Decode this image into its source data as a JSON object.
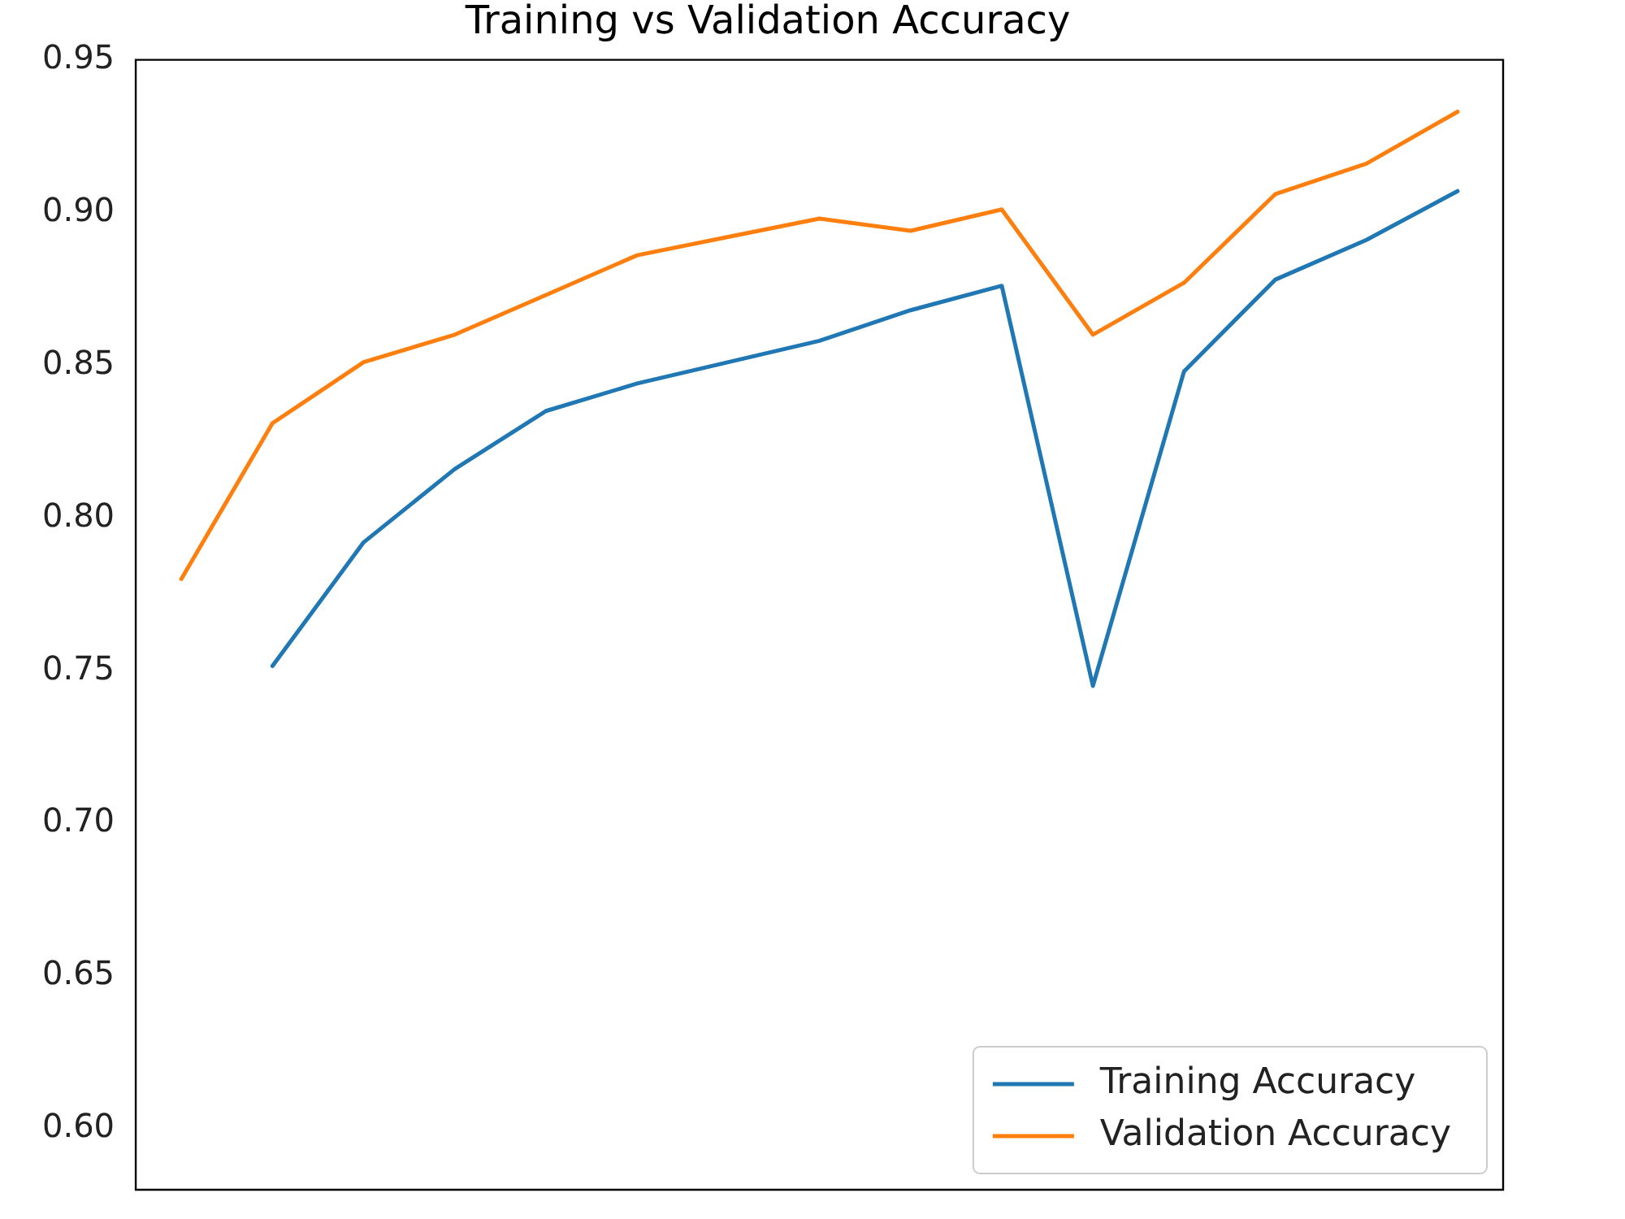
{
  "chart_data": {
    "type": "line",
    "title": "Training vs Validation Accuracy",
    "categories": [
      null,
      null,
      null,
      null,
      null,
      null,
      null,
      null,
      null,
      null,
      null,
      null,
      null,
      null,
      null
    ],
    "series": [
      {
        "name": "Training Accuracy",
        "color": "#1f77b4",
        "values": [
          null,
          0.7515,
          0.792,
          0.816,
          0.835,
          0.844,
          0.851,
          0.858,
          0.868,
          0.876,
          0.745,
          0.848,
          0.878,
          0.891,
          0.907
        ]
      },
      {
        "name": "Validation Accuracy",
        "color": "#ff7f0e",
        "values": [
          0.78,
          0.831,
          0.851,
          0.86,
          0.873,
          0.886,
          0.892,
          0.898,
          0.894,
          0.901,
          0.86,
          0.877,
          0.906,
          0.916,
          0.933
        ]
      }
    ],
    "ylim": [
      0.58,
      0.95
    ],
    "yticks": [
      {
        "value": 0.6,
        "label": "0.60"
      },
      {
        "value": 0.65,
        "label": "0.65"
      },
      {
        "value": 0.7,
        "label": "0.70"
      },
      {
        "value": 0.75,
        "label": "0.75"
      },
      {
        "value": 0.8,
        "label": "0.80"
      },
      {
        "value": 0.85,
        "label": "0.85"
      },
      {
        "value": 0.9,
        "label": "0.90"
      },
      {
        "value": 0.95,
        "label": "0.95"
      }
    ],
    "tick_labels": "y",
    "grid": false,
    "legend": "bottom right",
    "marker": "none",
    "line_style": "solid"
  }
}
